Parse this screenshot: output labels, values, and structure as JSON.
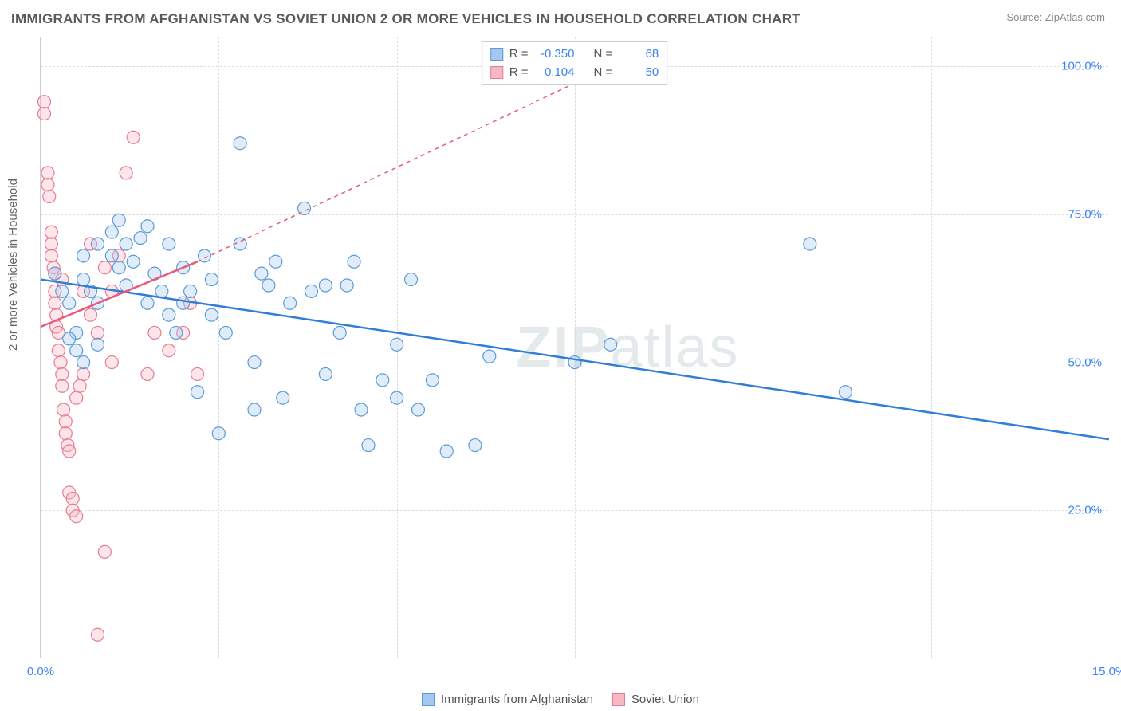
{
  "header": {
    "title": "IMMIGRANTS FROM AFGHANISTAN VS SOVIET UNION 2 OR MORE VEHICLES IN HOUSEHOLD CORRELATION CHART",
    "source": "Source: ZipAtlas.com"
  },
  "ylabel": "2 or more Vehicles in Household",
  "watermark": {
    "bold": "ZIP",
    "light": "atlas"
  },
  "chart": {
    "type": "scatter",
    "xlim": [
      0,
      15
    ],
    "ylim": [
      0,
      105
    ],
    "xticks": [
      0,
      15
    ],
    "xtick_labels": [
      "0.0%",
      "15.0%"
    ],
    "yticks": [
      25,
      50,
      75,
      100
    ],
    "ytick_labels": [
      "25.0%",
      "50.0%",
      "75.0%",
      "100.0%"
    ],
    "v_grid_x": [
      2.5,
      5,
      7.5,
      10,
      12.5
    ],
    "grid_color": "#dddddd",
    "axis_color": "#cccccc",
    "background": "#ffffff",
    "tick_label_color": "#3b82f6",
    "marker_radius": 8,
    "series": [
      {
        "name": "Immigrants from Afghanistan",
        "fill": "#a6c8f0",
        "stroke": "#5b9bd5",
        "R": "-0.350",
        "N": "68",
        "regression": {
          "x1": 0,
          "y1": 64,
          "x2": 15,
          "y2": 37,
          "solid": true,
          "color": "#2f7ed8"
        },
        "points": [
          [
            0.2,
            65
          ],
          [
            0.3,
            62
          ],
          [
            0.4,
            60
          ],
          [
            0.5,
            55
          ],
          [
            0.5,
            52
          ],
          [
            0.6,
            68
          ],
          [
            0.6,
            64
          ],
          [
            0.7,
            62
          ],
          [
            0.8,
            70
          ],
          [
            0.8,
            60
          ],
          [
            1.0,
            72
          ],
          [
            1.0,
            68
          ],
          [
            1.1,
            66
          ],
          [
            1.1,
            74
          ],
          [
            1.2,
            70
          ],
          [
            1.2,
            63
          ],
          [
            1.3,
            67
          ],
          [
            1.4,
            71
          ],
          [
            1.5,
            73
          ],
          [
            1.5,
            60
          ],
          [
            1.6,
            65
          ],
          [
            1.7,
            62
          ],
          [
            1.8,
            70
          ],
          [
            1.8,
            58
          ],
          [
            1.9,
            55
          ],
          [
            2.0,
            66
          ],
          [
            2.0,
            60
          ],
          [
            2.1,
            62
          ],
          [
            2.2,
            45
          ],
          [
            2.3,
            68
          ],
          [
            2.4,
            64
          ],
          [
            2.4,
            58
          ],
          [
            2.5,
            38
          ],
          [
            2.6,
            55
          ],
          [
            2.8,
            70
          ],
          [
            2.8,
            87
          ],
          [
            3.0,
            42
          ],
          [
            3.0,
            50
          ],
          [
            3.1,
            65
          ],
          [
            3.2,
            63
          ],
          [
            3.3,
            67
          ],
          [
            3.4,
            44
          ],
          [
            3.5,
            60
          ],
          [
            3.7,
            76
          ],
          [
            3.8,
            62
          ],
          [
            4.0,
            63
          ],
          [
            4.0,
            48
          ],
          [
            4.2,
            55
          ],
          [
            4.3,
            63
          ],
          [
            4.4,
            67
          ],
          [
            4.5,
            42
          ],
          [
            4.6,
            36
          ],
          [
            4.8,
            47
          ],
          [
            5.0,
            44
          ],
          [
            5.0,
            53
          ],
          [
            5.2,
            64
          ],
          [
            5.3,
            42
          ],
          [
            5.5,
            47
          ],
          [
            5.7,
            35
          ],
          [
            6.1,
            36
          ],
          [
            6.3,
            51
          ],
          [
            7.5,
            50
          ],
          [
            8.0,
            53
          ],
          [
            10.8,
            70
          ],
          [
            11.3,
            45
          ],
          [
            0.4,
            54
          ],
          [
            0.6,
            50
          ],
          [
            0.8,
            53
          ]
        ]
      },
      {
        "name": "Soviet Union",
        "fill": "#f5b8c4",
        "stroke": "#e87b93",
        "R": "0.104",
        "N": "50",
        "regression": {
          "x1": 0,
          "y1": 56,
          "x2": 2.2,
          "y2": 67,
          "x3": 8,
          "y3": 100,
          "solid_end": 2.2,
          "color": "#e85a78"
        },
        "points": [
          [
            0.05,
            94
          ],
          [
            0.05,
            92
          ],
          [
            0.1,
            82
          ],
          [
            0.1,
            80
          ],
          [
            0.12,
            78
          ],
          [
            0.15,
            70
          ],
          [
            0.15,
            72
          ],
          [
            0.15,
            68
          ],
          [
            0.18,
            66
          ],
          [
            0.2,
            65
          ],
          [
            0.2,
            62
          ],
          [
            0.2,
            60
          ],
          [
            0.22,
            58
          ],
          [
            0.22,
            56
          ],
          [
            0.25,
            55
          ],
          [
            0.25,
            52
          ],
          [
            0.28,
            50
          ],
          [
            0.3,
            48
          ],
          [
            0.3,
            46
          ],
          [
            0.3,
            64
          ],
          [
            0.32,
            42
          ],
          [
            0.35,
            40
          ],
          [
            0.35,
            38
          ],
          [
            0.38,
            36
          ],
          [
            0.4,
            35
          ],
          [
            0.4,
            28
          ],
          [
            0.45,
            27
          ],
          [
            0.45,
            25
          ],
          [
            0.5,
            24
          ],
          [
            0.5,
            44
          ],
          [
            0.55,
            46
          ],
          [
            0.6,
            48
          ],
          [
            0.6,
            62
          ],
          [
            0.7,
            58
          ],
          [
            0.7,
            70
          ],
          [
            0.8,
            55
          ],
          [
            0.8,
            4
          ],
          [
            0.9,
            18
          ],
          [
            0.9,
            66
          ],
          [
            1.0,
            50
          ],
          [
            1.0,
            62
          ],
          [
            1.1,
            68
          ],
          [
            1.2,
            82
          ],
          [
            1.3,
            88
          ],
          [
            1.5,
            48
          ],
          [
            1.6,
            55
          ],
          [
            1.8,
            52
          ],
          [
            2.0,
            55
          ],
          [
            2.1,
            60
          ],
          [
            2.2,
            48
          ]
        ]
      }
    ]
  },
  "stats_box": {
    "rows": [
      {
        "swatch_fill": "#a6c8f0",
        "swatch_stroke": "#5b9bd5",
        "r_label": "R =",
        "r_value": "-0.350",
        "n_label": "N =",
        "n_value": "68"
      },
      {
        "swatch_fill": "#f5b8c4",
        "swatch_stroke": "#e87b93",
        "r_label": "R =",
        "r_value": "0.104",
        "n_label": "N =",
        "n_value": "50"
      }
    ]
  },
  "legend": {
    "items": [
      {
        "swatch_fill": "#a6c8f0",
        "swatch_stroke": "#5b9bd5",
        "label": "Immigrants from Afghanistan"
      },
      {
        "swatch_fill": "#f5b8c4",
        "swatch_stroke": "#e87b93",
        "label": "Soviet Union"
      }
    ]
  }
}
